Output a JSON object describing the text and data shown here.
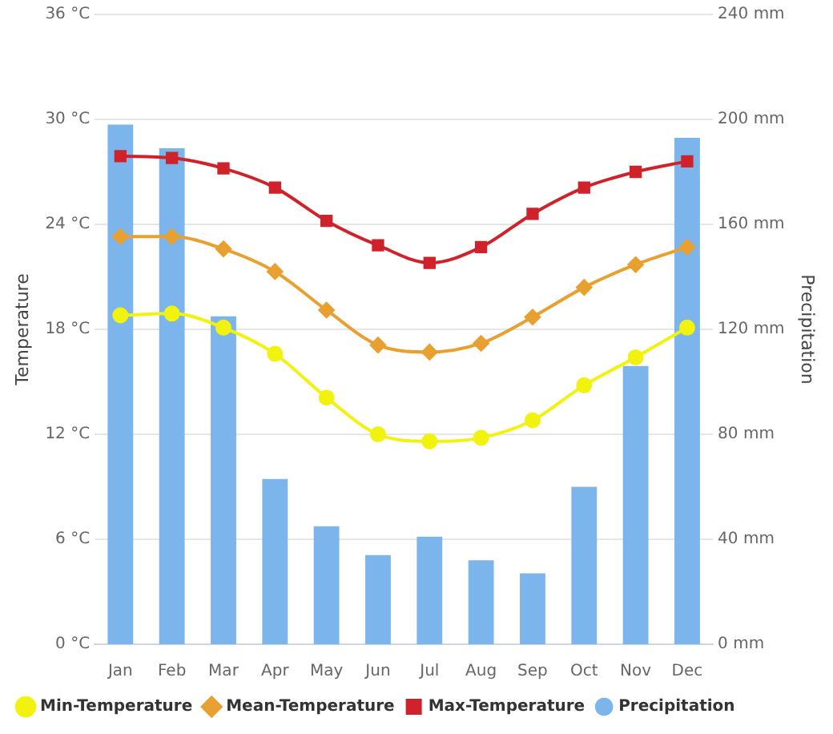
{
  "chart_data": {
    "type": "line",
    "ylabel": "Temperature",
    "y2label": "Precipitation",
    "categories": [
      "Jan",
      "Feb",
      "Mar",
      "Apr",
      "May",
      "Jun",
      "Jul",
      "Aug",
      "Sep",
      "Oct",
      "Nov",
      "Dec"
    ],
    "series": [
      {
        "name": "Min-Temperature",
        "color": "#f2f20f",
        "marker": "circle",
        "values": [
          18.8,
          18.9,
          18.1,
          16.6,
          14.1,
          12.0,
          11.6,
          11.8,
          12.8,
          14.8,
          16.4,
          18.1
        ]
      },
      {
        "name": "Mean-Temperature",
        "color": "#e8a030",
        "marker": "diamond",
        "values": [
          23.3,
          23.3,
          22.6,
          21.3,
          19.1,
          17.1,
          16.7,
          17.2,
          18.7,
          20.4,
          21.7,
          22.7
        ]
      },
      {
        "name": "Max-Temperature",
        "color": "#d0222a",
        "marker": "square",
        "values": [
          27.9,
          27.8,
          27.2,
          26.1,
          24.2,
          22.8,
          21.8,
          22.7,
          24.6,
          26.1,
          27.0,
          27.6
        ]
      },
      {
        "name": "Precipitation",
        "type": "bar",
        "axis": "y2",
        "color": "#7cb5ec",
        "values": [
          198,
          189,
          125,
          63,
          45,
          34,
          41,
          32,
          27,
          60,
          106,
          193
        ]
      }
    ],
    "ylim": [
      0,
      36
    ],
    "yticks": [
      {
        "value": 0,
        "label": "0 °C"
      },
      {
        "value": 6,
        "label": "6 °C"
      },
      {
        "value": 12,
        "label": "12 °C"
      },
      {
        "value": 18,
        "label": "18 °C"
      },
      {
        "value": 24,
        "label": "24 °C"
      },
      {
        "value": 30,
        "label": "30 °C"
      },
      {
        "value": 36,
        "label": "36 °C"
      }
    ],
    "y2lim": [
      0,
      240
    ],
    "y2ticks": [
      {
        "value": 0,
        "label": "0 mm"
      },
      {
        "value": 40,
        "label": "40 mm"
      },
      {
        "value": 80,
        "label": "80 mm"
      },
      {
        "value": 120,
        "label": "120 mm"
      },
      {
        "value": 160,
        "label": "160 mm"
      },
      {
        "value": 200,
        "label": "200 mm"
      },
      {
        "value": 240,
        "label": "240 mm"
      }
    ],
    "grid": "y",
    "legend": "bottom left"
  }
}
